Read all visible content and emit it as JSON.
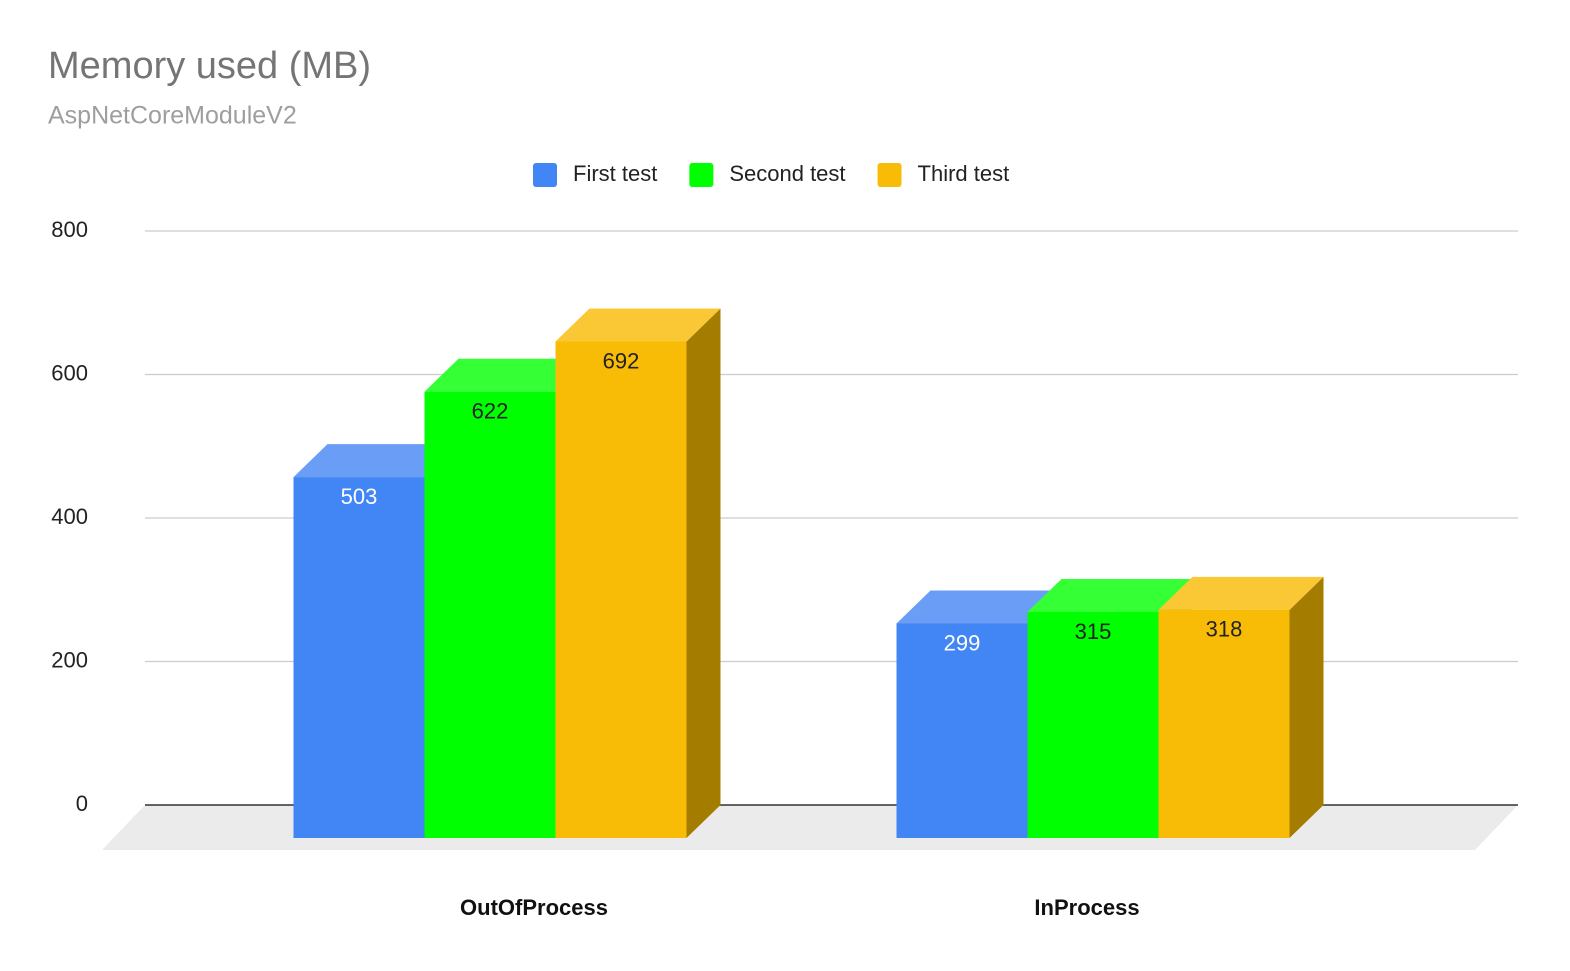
{
  "chart_data": {
    "type": "bar3d",
    "title": "Memory used (MB)",
    "subtitle": "AspNetCoreModuleV2",
    "categories": [
      "OutOfProcess",
      "InProcess"
    ],
    "series": [
      {
        "name": "First test",
        "color": "#4285f4",
        "top_color": "#6a9ef6",
        "side_color": "#2f5fae",
        "label_color": "#ffffff",
        "values": [
          503,
          299
        ]
      },
      {
        "name": "Second test",
        "color": "#00ff00",
        "top_color": "#35ff35",
        "side_color": "#00a800",
        "label_color": "#222222",
        "values": [
          622,
          315
        ]
      },
      {
        "name": "Third test",
        "color": "#f9bc06",
        "top_color": "#fac834",
        "side_color": "#a47c00",
        "label_color": "#222222",
        "values": [
          692,
          318
        ]
      }
    ],
    "ylim": [
      0,
      800
    ],
    "yticks": [
      0,
      200,
      400,
      600,
      800
    ],
    "grid": true,
    "legend": "top"
  }
}
